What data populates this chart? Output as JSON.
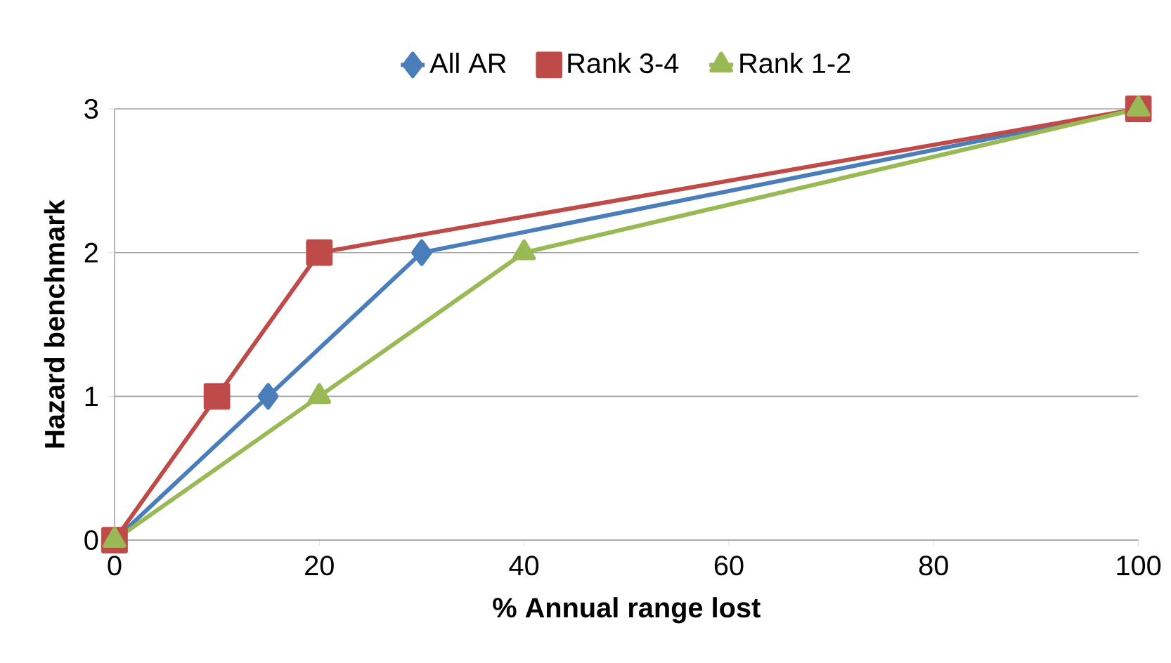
{
  "chart_data": {
    "type": "line",
    "xlabel": "% Annual range lost",
    "ylabel": "Hazard benchmark",
    "xlim": [
      0,
      100
    ],
    "xticks": [
      0,
      20,
      40,
      60,
      80,
      100
    ],
    "ylim": [
      0,
      3
    ],
    "yticks": [
      0,
      1,
      2,
      3
    ],
    "grid": "y",
    "legend": "top",
    "series": [
      {
        "name": "All AR",
        "color": "#4a7ebb",
        "marker": "diamond",
        "x": [
          0,
          15,
          30,
          100
        ],
        "values": [
          0,
          1,
          2,
          3
        ]
      },
      {
        "name": "Rank 3-4",
        "color": "#be4b48",
        "marker": "square",
        "x": [
          0,
          10,
          20,
          100
        ],
        "values": [
          0,
          1,
          2,
          3
        ]
      },
      {
        "name": "Rank 1-2",
        "color": "#98b954",
        "marker": "triangle",
        "x": [
          0,
          20,
          40,
          100
        ],
        "values": [
          0,
          1,
          2,
          3
        ]
      }
    ]
  }
}
